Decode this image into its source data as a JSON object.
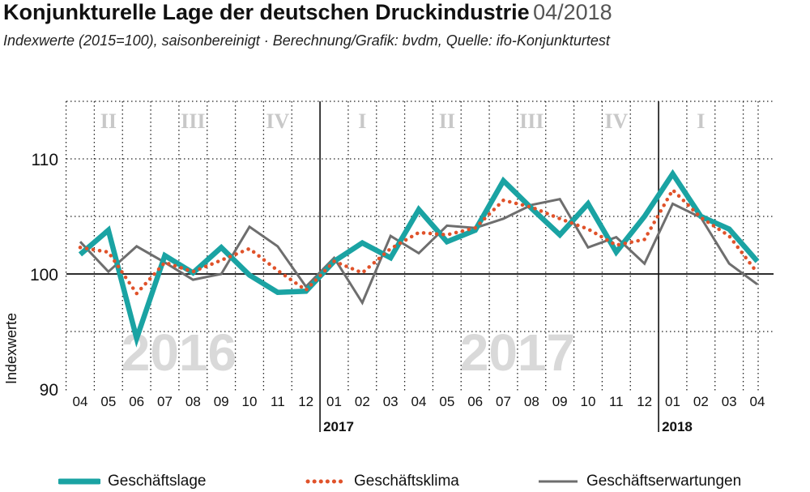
{
  "title": "Konjunkturelle Lage der deutschen Druckindustrie",
  "date": "04/2018",
  "subtitle": "Indexwerte (2015=100), saisonbereinigt · Berechnung/Grafik: bvdm, Quelle: ifo-Konjunkturtest",
  "colors": {
    "geschaeftslage": "#1aa3a3",
    "geschaeftsklima": "#e0522a",
    "geschaeftserwartungen": "#6e6e6e",
    "watermark": "#d9d9d9",
    "quarter": "#c8c8c8"
  },
  "chart_data": {
    "type": "line",
    "ylabel": "Indexwerte",
    "ylim": [
      90,
      115
    ],
    "yticks": [
      90,
      100,
      110
    ],
    "x": [
      "04",
      "05",
      "06",
      "07",
      "08",
      "09",
      "10",
      "11",
      "12",
      "01",
      "02",
      "03",
      "04",
      "05",
      "06",
      "07",
      "08",
      "09",
      "10",
      "11",
      "12",
      "01",
      "02",
      "03",
      "04"
    ],
    "year_labels": [
      {
        "label": "2017",
        "index": 9
      },
      {
        "label": "2018",
        "index": 21
      }
    ],
    "watermarks": [
      {
        "label": "2016",
        "index": 3.5
      },
      {
        "label": "2017",
        "index": 15.5
      }
    ],
    "quarters": [
      {
        "label": "II",
        "index": 1
      },
      {
        "label": "III",
        "index": 4
      },
      {
        "label": "IV",
        "index": 7
      },
      {
        "label": "I",
        "index": 10
      },
      {
        "label": "II",
        "index": 13
      },
      {
        "label": "III",
        "index": 16
      },
      {
        "label": "IV",
        "index": 19
      },
      {
        "label": "I",
        "index": 22
      }
    ],
    "series": [
      {
        "name": "Geschäftslage",
        "values": [
          101.7,
          103.8,
          94.4,
          101.6,
          100.1,
          102.3,
          99.9,
          98.4,
          98.5,
          101.1,
          102.7,
          101.4,
          105.6,
          102.8,
          103.8,
          108.1,
          105.7,
          103.4,
          106.1,
          101.9,
          105.0,
          108.7,
          105.0,
          103.9,
          101.1
        ]
      },
      {
        "name": "Geschäftsklima",
        "values": [
          102.3,
          101.9,
          98.3,
          101.0,
          100.2,
          101.2,
          102.2,
          100.3,
          98.6,
          101.1,
          100.1,
          102.2,
          103.6,
          103.4,
          104.0,
          106.4,
          105.8,
          104.8,
          103.9,
          102.5,
          103.0,
          107.3,
          104.9,
          103.3,
          100.1
        ]
      },
      {
        "name": "Geschäftserwartungen",
        "values": [
          102.8,
          100.2,
          102.4,
          101.0,
          99.5,
          100.0,
          104.1,
          102.4,
          98.9,
          101.4,
          97.5,
          103.3,
          101.8,
          104.2,
          104.0,
          104.8,
          106.0,
          106.5,
          102.3,
          103.2,
          100.9,
          106.1,
          104.9,
          100.9,
          99.1
        ]
      }
    ]
  }
}
